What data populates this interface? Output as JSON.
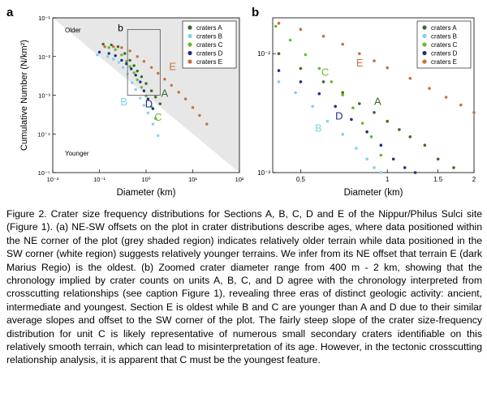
{
  "panel_a": {
    "label": "a"
  },
  "panel_b": {
    "label": "b"
  },
  "caption": "Figure 2. Crater size frequency distributions for Sections A, B, C, D and E of the Nippur/Philus Sulci site (Figure 1). (a) NE-SW offsets on the plot in crater distributions describe ages, where data positioned within the NE corner of the plot (grey shaded region) indicates relatively older terrain while data positioned in the SW corner (white region) suggests relatively younger terrains. We infer from its NE offset that terrain E (dark Marius Regio) is the oldest. (b) Zoomed crater diameter range from 400 m - 2 km, showing that the chronology implied by crater counts on units A, B, C, and D agree with the chronology interpreted from crosscutting relationships (see caption Figure 1), revealing three eras of distinct geologic activity: ancient, intermediate and youngest. Section E is oldest while B and C are younger than A and D due to their similar average slopes and offset to the SW corner of the plot. The fairly steep slope of the crater size-frequency distribution for unit C is likely representative of numerous small secondary craters identifiable on this relatively smooth terrain, which can lead to misinterpretation of its age. However, in the tectonic crosscutting relationship analysis, it is apparent that C must be the youngest feature.",
  "colors": {
    "A": "#3c6b2a",
    "B": "#7fd3e6",
    "C": "#6cb82e",
    "D": "#1f2f8c",
    "E": "#c8703e",
    "shade": "#e7e7e7"
  },
  "chart_data": [
    {
      "type": "scatter",
      "panel": "a",
      "xlabel": "Diameter (km)",
      "ylabel": "Cumulative Number (N/km²)",
      "x_scale": "log",
      "y_scale": "log",
      "xlim": [
        0.01,
        100
      ],
      "ylim": [
        1e-05,
        0.1
      ],
      "x_ticks": [
        "10⁻²",
        "10⁻¹",
        "10⁰",
        "10¹",
        "10²"
      ],
      "y_ticks": [
        "10⁻¹",
        "10⁻²",
        "10⁻³",
        "10⁻⁴",
        "10⁻⁵"
      ],
      "annotations": [
        "Older",
        "Younger",
        "b"
      ],
      "zoom_box": {
        "x": [
          0.4,
          2
        ],
        "y": [
          0.001,
          0.05
        ]
      },
      "legend_position": "top-right",
      "legend": [
        "craters A",
        "craters B",
        "craters C",
        "craters D",
        "craters E"
      ],
      "series": [
        {
          "name": "craters A",
          "label": "A",
          "label_at": [
            2.1,
            0.0009
          ],
          "x": [
            0.12,
            0.18,
            0.25,
            0.35,
            0.45,
            0.55,
            0.65,
            0.8,
            1.0,
            1.3,
            1.6,
            2.0
          ],
          "y": [
            0.021,
            0.02,
            0.018,
            0.012,
            0.008,
            0.0058,
            0.0042,
            0.003,
            0.002,
            0.0013,
            0.0009,
            0.0006
          ]
        },
        {
          "name": "craters B",
          "label": "B",
          "label_at": [
            0.28,
            0.00055
          ],
          "x": [
            0.09,
            0.15,
            0.2,
            0.26,
            0.32,
            0.4,
            0.5,
            0.6,
            0.75,
            0.9,
            1.1,
            1.4,
            1.8
          ],
          "y": [
            0.011,
            0.01,
            0.0085,
            0.007,
            0.0052,
            0.0035,
            0.0021,
            0.0014,
            0.00085,
            0.00055,
            0.00035,
            0.00018,
            9e-05
          ]
        },
        {
          "name": "craters C",
          "label": "C",
          "label_at": [
            1.5,
            0.00022
          ],
          "x": [
            0.16,
            0.22,
            0.3,
            0.38,
            0.45,
            0.55,
            0.65,
            0.8,
            1.0,
            1.3,
            1.6
          ],
          "y": [
            0.017,
            0.015,
            0.011,
            0.0075,
            0.0055,
            0.0038,
            0.0025,
            0.0016,
            0.00095,
            0.0005,
            0.00025
          ]
        },
        {
          "name": "craters D",
          "label": "D",
          "label_at": [
            0.95,
            0.00048
          ],
          "x": [
            0.1,
            0.16,
            0.22,
            0.3,
            0.38,
            0.48,
            0.6,
            0.75,
            0.9,
            1.1,
            1.4
          ],
          "y": [
            0.013,
            0.012,
            0.0105,
            0.008,
            0.0065,
            0.0048,
            0.0033,
            0.0022,
            0.0013,
            0.0008,
            0.00045
          ]
        },
        {
          "name": "craters E",
          "label": "E",
          "label_at": [
            3.1,
            0.0045
          ],
          "x": [
            0.13,
            0.2,
            0.3,
            0.45,
            0.65,
            0.9,
            1.3,
            1.8,
            2.5,
            3.5,
            5,
            7,
            10,
            14,
            20
          ],
          "y": [
            0.018,
            0.018,
            0.017,
            0.014,
            0.01,
            0.0075,
            0.0052,
            0.0037,
            0.0026,
            0.0018,
            0.0012,
            0.0008,
            0.00048,
            0.0003,
            0.00018
          ]
        }
      ]
    },
    {
      "type": "scatter",
      "panel": "b",
      "xlabel": "Diameter (km)",
      "x_scale": "log",
      "y_scale": "log",
      "xlim": [
        0.4,
        2
      ],
      "ylim": [
        0.001,
        0.02
      ],
      "x_ticks": [
        "0.5",
        "1",
        "1.5",
        "2"
      ],
      "y_ticks": [
        "10⁻²",
        "10⁻³"
      ],
      "legend_position": "top-right",
      "legend": [
        "craters A",
        "craters B",
        "craters C",
        "craters D",
        "craters E"
      ],
      "series": [
        {
          "name": "craters A",
          "label": "A",
          "label_at": [
            0.9,
            0.0037
          ],
          "x": [
            0.42,
            0.5,
            0.6,
            0.7,
            0.8,
            0.9,
            1.0,
            1.1,
            1.2,
            1.35,
            1.5,
            1.7
          ],
          "y": [
            0.01,
            0.0075,
            0.0058,
            0.0047,
            0.0038,
            0.0032,
            0.0027,
            0.0023,
            0.002,
            0.0017,
            0.0013,
            0.0011
          ]
        },
        {
          "name": "craters B",
          "label": "B",
          "label_at": [
            0.56,
            0.0022
          ],
          "x": [
            0.42,
            0.48,
            0.55,
            0.62,
            0.7,
            0.78,
            0.85,
            0.9,
            0.95
          ],
          "y": [
            0.0058,
            0.0047,
            0.0036,
            0.0027,
            0.0021,
            0.0016,
            0.0013,
            0.0011,
            0.001
          ]
        },
        {
          "name": "craters C",
          "label": "C",
          "label_at": [
            0.59,
            0.0065
          ],
          "x": [
            0.41,
            0.46,
            0.52,
            0.58,
            0.64,
            0.7,
            0.76,
            0.82,
            0.88,
            0.95
          ],
          "y": [
            0.017,
            0.013,
            0.0098,
            0.0075,
            0.0058,
            0.0045,
            0.0035,
            0.0026,
            0.002,
            0.0014
          ]
        },
        {
          "name": "craters D",
          "label": "D",
          "label_at": [
            0.66,
            0.0028
          ],
          "x": [
            0.42,
            0.5,
            0.58,
            0.66,
            0.75,
            0.85,
            0.95,
            1.05,
            1.15,
            1.25
          ],
          "y": [
            0.0072,
            0.0058,
            0.0046,
            0.0036,
            0.0028,
            0.0022,
            0.0017,
            0.0013,
            0.0011,
            0.001
          ]
        },
        {
          "name": "craters E",
          "label": "E",
          "label_at": [
            0.78,
            0.0078
          ],
          "x": [
            0.42,
            0.5,
            0.6,
            0.7,
            0.8,
            0.9,
            1.0,
            1.2,
            1.4,
            1.6,
            1.8,
            2.0
          ],
          "y": [
            0.018,
            0.016,
            0.014,
            0.012,
            0.01,
            0.0087,
            0.0076,
            0.0062,
            0.0051,
            0.0043,
            0.0037,
            0.0032
          ]
        }
      ]
    }
  ]
}
